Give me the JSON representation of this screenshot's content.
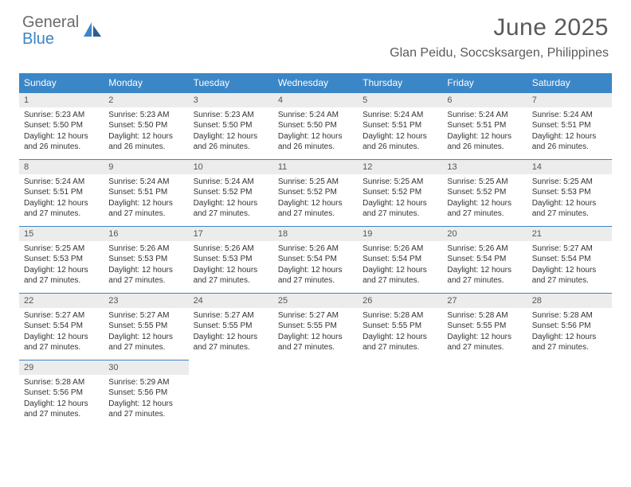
{
  "logo": {
    "word1": "General",
    "word2": "Blue"
  },
  "colors": {
    "accent": "#3b86c6",
    "header_bg": "#3b86c6",
    "daynum_bg": "#ececec",
    "text": "#333333",
    "title_text": "#5a5a5a"
  },
  "title": "June 2025",
  "location": "Glan Peidu, Soccsksargen, Philippines",
  "days_of_week": [
    "Sunday",
    "Monday",
    "Tuesday",
    "Wednesday",
    "Thursday",
    "Friday",
    "Saturday"
  ],
  "weeks": [
    [
      {
        "n": "1",
        "sr": "Sunrise: 5:23 AM",
        "ss": "Sunset: 5:50 PM",
        "dl": "Daylight: 12 hours and 26 minutes."
      },
      {
        "n": "2",
        "sr": "Sunrise: 5:23 AM",
        "ss": "Sunset: 5:50 PM",
        "dl": "Daylight: 12 hours and 26 minutes."
      },
      {
        "n": "3",
        "sr": "Sunrise: 5:23 AM",
        "ss": "Sunset: 5:50 PM",
        "dl": "Daylight: 12 hours and 26 minutes."
      },
      {
        "n": "4",
        "sr": "Sunrise: 5:24 AM",
        "ss": "Sunset: 5:50 PM",
        "dl": "Daylight: 12 hours and 26 minutes."
      },
      {
        "n": "5",
        "sr": "Sunrise: 5:24 AM",
        "ss": "Sunset: 5:51 PM",
        "dl": "Daylight: 12 hours and 26 minutes."
      },
      {
        "n": "6",
        "sr": "Sunrise: 5:24 AM",
        "ss": "Sunset: 5:51 PM",
        "dl": "Daylight: 12 hours and 26 minutes."
      },
      {
        "n": "7",
        "sr": "Sunrise: 5:24 AM",
        "ss": "Sunset: 5:51 PM",
        "dl": "Daylight: 12 hours and 26 minutes."
      }
    ],
    [
      {
        "n": "8",
        "sr": "Sunrise: 5:24 AM",
        "ss": "Sunset: 5:51 PM",
        "dl": "Daylight: 12 hours and 27 minutes."
      },
      {
        "n": "9",
        "sr": "Sunrise: 5:24 AM",
        "ss": "Sunset: 5:51 PM",
        "dl": "Daylight: 12 hours and 27 minutes."
      },
      {
        "n": "10",
        "sr": "Sunrise: 5:24 AM",
        "ss": "Sunset: 5:52 PM",
        "dl": "Daylight: 12 hours and 27 minutes."
      },
      {
        "n": "11",
        "sr": "Sunrise: 5:25 AM",
        "ss": "Sunset: 5:52 PM",
        "dl": "Daylight: 12 hours and 27 minutes."
      },
      {
        "n": "12",
        "sr": "Sunrise: 5:25 AM",
        "ss": "Sunset: 5:52 PM",
        "dl": "Daylight: 12 hours and 27 minutes."
      },
      {
        "n": "13",
        "sr": "Sunrise: 5:25 AM",
        "ss": "Sunset: 5:52 PM",
        "dl": "Daylight: 12 hours and 27 minutes."
      },
      {
        "n": "14",
        "sr": "Sunrise: 5:25 AM",
        "ss": "Sunset: 5:53 PM",
        "dl": "Daylight: 12 hours and 27 minutes."
      }
    ],
    [
      {
        "n": "15",
        "sr": "Sunrise: 5:25 AM",
        "ss": "Sunset: 5:53 PM",
        "dl": "Daylight: 12 hours and 27 minutes."
      },
      {
        "n": "16",
        "sr": "Sunrise: 5:26 AM",
        "ss": "Sunset: 5:53 PM",
        "dl": "Daylight: 12 hours and 27 minutes."
      },
      {
        "n": "17",
        "sr": "Sunrise: 5:26 AM",
        "ss": "Sunset: 5:53 PM",
        "dl": "Daylight: 12 hours and 27 minutes."
      },
      {
        "n": "18",
        "sr": "Sunrise: 5:26 AM",
        "ss": "Sunset: 5:54 PM",
        "dl": "Daylight: 12 hours and 27 minutes."
      },
      {
        "n": "19",
        "sr": "Sunrise: 5:26 AM",
        "ss": "Sunset: 5:54 PM",
        "dl": "Daylight: 12 hours and 27 minutes."
      },
      {
        "n": "20",
        "sr": "Sunrise: 5:26 AM",
        "ss": "Sunset: 5:54 PM",
        "dl": "Daylight: 12 hours and 27 minutes."
      },
      {
        "n": "21",
        "sr": "Sunrise: 5:27 AM",
        "ss": "Sunset: 5:54 PM",
        "dl": "Daylight: 12 hours and 27 minutes."
      }
    ],
    [
      {
        "n": "22",
        "sr": "Sunrise: 5:27 AM",
        "ss": "Sunset: 5:54 PM",
        "dl": "Daylight: 12 hours and 27 minutes."
      },
      {
        "n": "23",
        "sr": "Sunrise: 5:27 AM",
        "ss": "Sunset: 5:55 PM",
        "dl": "Daylight: 12 hours and 27 minutes."
      },
      {
        "n": "24",
        "sr": "Sunrise: 5:27 AM",
        "ss": "Sunset: 5:55 PM",
        "dl": "Daylight: 12 hours and 27 minutes."
      },
      {
        "n": "25",
        "sr": "Sunrise: 5:27 AM",
        "ss": "Sunset: 5:55 PM",
        "dl": "Daylight: 12 hours and 27 minutes."
      },
      {
        "n": "26",
        "sr": "Sunrise: 5:28 AM",
        "ss": "Sunset: 5:55 PM",
        "dl": "Daylight: 12 hours and 27 minutes."
      },
      {
        "n": "27",
        "sr": "Sunrise: 5:28 AM",
        "ss": "Sunset: 5:55 PM",
        "dl": "Daylight: 12 hours and 27 minutes."
      },
      {
        "n": "28",
        "sr": "Sunrise: 5:28 AM",
        "ss": "Sunset: 5:56 PM",
        "dl": "Daylight: 12 hours and 27 minutes."
      }
    ],
    [
      {
        "n": "29",
        "sr": "Sunrise: 5:28 AM",
        "ss": "Sunset: 5:56 PM",
        "dl": "Daylight: 12 hours and 27 minutes."
      },
      {
        "n": "30",
        "sr": "Sunrise: 5:29 AM",
        "ss": "Sunset: 5:56 PM",
        "dl": "Daylight: 12 hours and 27 minutes."
      },
      {
        "n": "",
        "sr": "",
        "ss": "",
        "dl": ""
      },
      {
        "n": "",
        "sr": "",
        "ss": "",
        "dl": ""
      },
      {
        "n": "",
        "sr": "",
        "ss": "",
        "dl": ""
      },
      {
        "n": "",
        "sr": "",
        "ss": "",
        "dl": ""
      },
      {
        "n": "",
        "sr": "",
        "ss": "",
        "dl": ""
      }
    ]
  ]
}
